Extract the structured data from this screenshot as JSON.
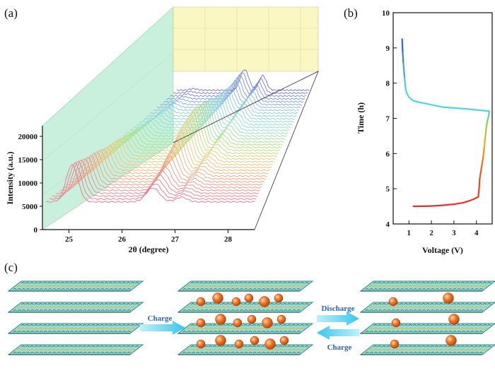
{
  "panels": {
    "a": {
      "label": "(a)",
      "xlabel": "2θ (degree)",
      "ylabel": "Intensity (a.u.)",
      "x_ticks": [
        "25",
        "26",
        "27",
        "28"
      ],
      "y_ticks": [
        "0",
        "5000",
        "10000",
        "15000",
        "20000"
      ]
    },
    "b": {
      "label": "(b)",
      "xlabel": "Voltage (V)",
      "ylabel": "Time (h)",
      "x_ticks": [
        "1",
        "2",
        "3",
        "4"
      ],
      "y_ticks": [
        "4",
        "5",
        "6",
        "7",
        "8",
        "9",
        "10"
      ]
    },
    "c": {
      "label": "(c)",
      "charge_label": "Charge",
      "discharge_label": "Discharge",
      "charge_back_label": "Charge"
    }
  },
  "colors": {
    "charge_red": "#e0302a",
    "green": "#7ed84a",
    "cyan": "#4fd6e0",
    "blue": "#2b55cc",
    "back_wall_yellow": "#fbf7c2",
    "side_wall_green": "#c9f0dc",
    "sheet_teal": "#2f8f86",
    "sheet_yellow": "#c9b932",
    "ion_orange": "#e8641e",
    "arrow_cyan": "#5ed2f0"
  },
  "chart_data": [
    {
      "type": "line",
      "title": "",
      "description_series": "stacked in-situ XRD patterns (waterfall)",
      "xlabel": "2θ (degree)",
      "ylabel": "Intensity (a.u.)",
      "xlim": [
        24.5,
        28.5
      ],
      "ylim": [
        0,
        22000
      ],
      "n_patterns": 40,
      "base_offset_front": 4500,
      "offset_step": 400,
      "peaks": [
        {
          "position": 25.0,
          "front_height": 7000,
          "note": "strongest in front patterns"
        },
        {
          "position": 26.55,
          "back_height": 6500,
          "note": "graphite (002)-type peak, grows mid-series"
        },
        {
          "position": 27.1,
          "height": 1800
        }
      ]
    },
    {
      "type": "line",
      "title": "",
      "xlabel": "Voltage (V)",
      "ylabel": "Time (h)",
      "xlim": [
        0.3,
        4.7
      ],
      "ylim": [
        4,
        10
      ],
      "series": [
        {
          "name": "charge-discharge profile",
          "x": [
            1.2,
            2.0,
            2.5,
            3.0,
            3.4,
            3.7,
            3.9,
            4.08,
            4.12,
            4.15,
            4.2,
            4.25,
            4.3,
            4.35,
            4.38,
            4.42,
            4.45,
            4.5,
            4.55,
            4.57,
            4.3,
            3.5,
            2.5,
            1.5,
            1.2,
            1.0,
            0.9,
            0.85,
            0.8,
            0.75,
            0.72,
            0.7
          ],
          "y": [
            4.5,
            4.51,
            4.53,
            4.56,
            4.6,
            4.66,
            4.71,
            4.77,
            5.0,
            5.3,
            5.5,
            5.7,
            5.9,
            6.2,
            6.4,
            6.6,
            6.8,
            6.95,
            7.1,
            7.2,
            7.22,
            7.27,
            7.32,
            7.45,
            7.5,
            7.6,
            7.72,
            7.85,
            8.2,
            8.6,
            8.9,
            9.25
          ]
        }
      ]
    }
  ]
}
